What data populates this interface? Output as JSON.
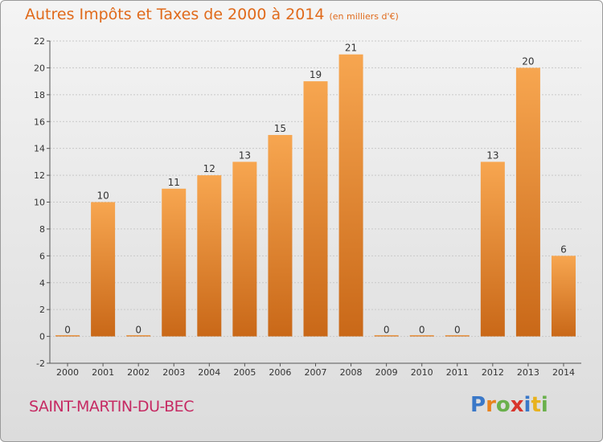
{
  "title": "Autres Impôts et Taxes de 2000 à 2014",
  "subtitle": "(en milliers d'€)",
  "commune": "SAINT-MARTIN-DU-BEC",
  "logo": {
    "letters": [
      "P",
      "r",
      "o",
      "x",
      "i",
      "t",
      "i"
    ],
    "colors": [
      "#3a78c8",
      "#e8831e",
      "#6ab04c",
      "#d8342c",
      "#3a78c8",
      "#e8b21e",
      "#6ab04c"
    ]
  },
  "colors": {
    "bar_top": "#f7a650",
    "bar_bottom": "#c96818",
    "title": "#e06a1b",
    "commune": "#c62a63"
  },
  "chart_data": {
    "type": "bar",
    "categories": [
      "2000",
      "2001",
      "2002",
      "2003",
      "2004",
      "2005",
      "2006",
      "2007",
      "2008",
      "2009",
      "2010",
      "2011",
      "2012",
      "2013",
      "2014"
    ],
    "values": [
      0,
      10,
      0,
      11,
      12,
      13,
      15,
      19,
      21,
      0,
      0,
      0,
      13,
      20,
      6
    ],
    "data_labels": [
      "0",
      "10",
      "0",
      "11",
      "12",
      "13",
      "15",
      "19",
      "21",
      "0",
      "0",
      "0",
      "13",
      "20",
      "6"
    ],
    "ylim": [
      -2,
      22
    ],
    "yticks": [
      -2,
      0,
      2,
      4,
      6,
      8,
      10,
      12,
      14,
      16,
      18,
      20,
      22
    ],
    "ytick_labels": [
      "-2",
      "0",
      "2",
      "4",
      "6",
      "8",
      "10",
      "12",
      "14",
      "16",
      "18",
      "20",
      "22"
    ],
    "grid": true,
    "xlabel": "",
    "ylabel": ""
  }
}
